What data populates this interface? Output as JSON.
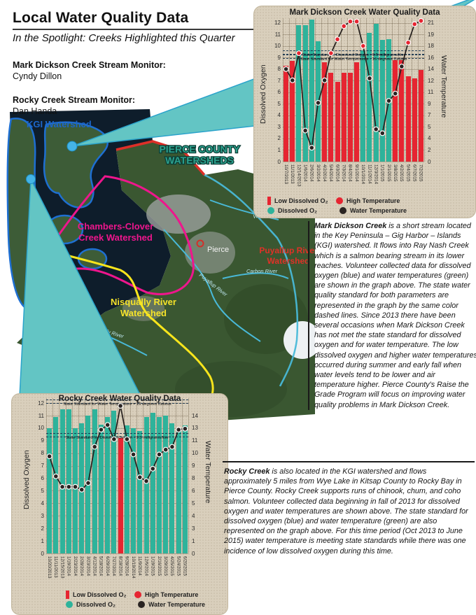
{
  "header": {
    "title": "Local Water Quality Data",
    "subtitle": "In the Spotlight: Creeks Highlighted this Quarter"
  },
  "monitors": [
    {
      "label": "Mark Dickson Creek Stream Monitor:",
      "name": "Cyndy Dillon"
    },
    {
      "label": "Rocky Creek Stream Monitor:",
      "name": "Dan Handa"
    }
  ],
  "map": {
    "labels": {
      "kgi": "KGI Watershed",
      "pierce_line1": "PIERCE COUNTY",
      "pierce_line2": "WATERSHEDS",
      "chambers_line1": "Chambers-Clover",
      "chambers_line2": "Creek Watershed",
      "nisqually_line1": "Nisqually River",
      "nisqually_line2": "Watershed",
      "puyallup_line1": "Puyallup River",
      "puyallup_line2": "Watershed",
      "river_white": "White River",
      "river_carbon": "Carbon River",
      "river_puyallup": "Puyallup River",
      "river_nisqually": "Nisqually River",
      "city": "Pierce"
    },
    "colors": {
      "kgi_outline": "#1e6fd2",
      "chambers_outline": "#ee168d",
      "nisqually_outline": "#f8e51c",
      "county_border": "#dd2f28",
      "river": "#49b9d8",
      "pierce_label": "#2ca08d"
    }
  },
  "legend": {
    "low_do": "Low Dissolved O₂",
    "high_temp": "High Temperature",
    "dissolved_o2": "Dissolved O₂",
    "water_temp": "Water Temperature"
  },
  "articles": {
    "mark_dickson": {
      "lead": "Mark Dickson Creek",
      "body": " is a short stream located in the Key Peninsula – Gig Harbor – Islands (KGI) watershed. It flows into Ray Nash Creek which is a salmon bearing stream in its lower reaches. Volunteer collected data for dissolved oxygen (blue) and water temperatures (green) are shown in the graph above. The state water quality standard for both parameters are represented in the graph by the same color dashed lines. Since 2013 there have been several occasions when Mark Dickson Creek has not met the state standard for dissolved oxygen and for water temperature. The low dissolved oxygen and higher water temperatures occurred during summer and early fall when water levels tend to be lower and air temperature higher. Pierce County's Raise the Grade Program will focus on improving water quality problems in Mark Dickson Creek."
    },
    "rocky": {
      "lead": "Rocky Creek",
      "body": " is also located in the KGI watershed and flows approximately 5 miles from Wye Lake in Kitsap County to Rocky Bay in Pierce County. Rocky Creek supports runs of chinook, chum, and coho salmon. Volunteer collected data beginning in fall of 2013 for dissolved oxygen and water temperatures are shown above. The state standard for dissolved oxygen (blue) and water temperature (green) are also represented on the graph above. For this time period (Oct 2013 to June 2015) water temperature is meeting state standards while there was one incidence of low dissolved oxygen during this time."
    }
  },
  "chart_colors": {
    "bar_ok": "#2eb39b",
    "bar_low": "#e62531",
    "dot_normal": "#2a2422",
    "dot_high": "#e62531",
    "line": "#26201e",
    "standard_dash": "#16334e",
    "card_bg": "#d9cfbc"
  },
  "chart_data": [
    {
      "id": "mark_dickson",
      "type": "bar",
      "subtype": "dual-axis bar + line",
      "title": "Mark Dickson Creek Water Quality Data",
      "ylabel_left": "Dissolved Oxygen",
      "ylabel_right": "Water Temperature",
      "categories": [
        "10/7/2013",
        "11/1/2013",
        "12/14/2013",
        "1/6/2014",
        "2/6/2014",
        "3/2/2014",
        "4/2/2014",
        "5/4/2014",
        "6/3/2014",
        "7/3/2014",
        "8/4/2014",
        "9/1/2014",
        "10/1/2014",
        "11/1/2014",
        "12/3/2014",
        "1/1/2015",
        "2/1/2015",
        "3/8/2015",
        "4/2/2015",
        "5/4/2015",
        "6/7/2015",
        "7/2/2015"
      ],
      "series": [
        {
          "name": "Dissolved O₂",
          "type": "bar",
          "axis": "left",
          "unit": "milligrams/liter",
          "values": [
            8.3,
            8.7,
            11.8,
            11.8,
            12.3,
            10.4,
            8.6,
            7.7,
            6.9,
            7.7,
            7.7,
            8.6,
            9.6,
            11.1,
            11.9,
            10.5,
            10.6,
            8.8,
            8.8,
            7.4,
            7.2,
            7.9
          ]
        },
        {
          "name": "Water Temperature",
          "type": "line",
          "axis": "right",
          "unit": "degrees Celsius",
          "values": [
            14,
            12.3,
            16.4,
            4.7,
            2.1,
            8.9,
            12.3,
            16.4,
            18.5,
            20.5,
            21.2,
            21.2,
            17.5,
            12.6,
            4.9,
            4.3,
            9.2,
            10.3,
            14.4,
            18,
            20.8,
            21.3
          ]
        }
      ],
      "standards": [
        {
          "label": "State Standard for Dissolved Oxygen - 9.5 milligrams/liter",
          "axis": "left",
          "value": 9.5
        },
        {
          "label": "State Standard for Water Temperature - 16 degrees Celsius",
          "axis": "right",
          "value": 16
        }
      ],
      "left_ticks": [
        0,
        1,
        2,
        3,
        4,
        5,
        6,
        7,
        8,
        9,
        10,
        11,
        12
      ],
      "right_tick_labels": [
        "21",
        "19",
        "18",
        "16",
        "14",
        "12",
        "11",
        "9",
        "7",
        "5",
        "4",
        "2",
        "0"
      ],
      "ylim_left": [
        0,
        12.4
      ],
      "ylim_right": [
        0,
        21.7
      ],
      "grid": true,
      "legend_position": "bottom-left"
    },
    {
      "id": "rocky",
      "type": "bar",
      "subtype": "dual-axis bar + line",
      "title": "Rocky Creek Water Quality Data",
      "ylabel_left": "Dissolved Oxygen",
      "ylabel_right": "Water Temperature",
      "categories": [
        "10/20/2013",
        "11/11/2013",
        "12/15/2013",
        "1/19/2014",
        "2/23/2014",
        "2/28/2014",
        "3/23/2014",
        "4/12/2014",
        "5/18/2014",
        "6/29/2014",
        "7/27/2014",
        "8/18/2014",
        "9/28/2014",
        "10/19/2014",
        "11/9/2014",
        "12/6/2014",
        "1/19/2015",
        "2/16/2015",
        "3/29/2015",
        "4/25/2015",
        "5/24/2015",
        "6/20/2015"
      ],
      "series": [
        {
          "name": "Dissolved O₂",
          "type": "bar",
          "axis": "left",
          "unit": "milligrams/liter",
          "values": [
            10.0,
            10.9,
            11.5,
            11.5,
            10.0,
            10.4,
            11.0,
            11.5,
            10.3,
            10.9,
            11.4,
            9.2,
            10.2,
            10.0,
            9.8,
            10.9,
            11.2,
            10.9,
            11.0,
            10.4,
            9.9,
            10.2
          ]
        },
        {
          "name": "Water Temperature",
          "type": "line",
          "axis": "right",
          "unit": "degrees Celsius",
          "values": [
            10.2,
            8.1,
            7.0,
            7.0,
            7.0,
            6.7,
            7.4,
            11.2,
            13.0,
            13.5,
            12.0,
            15.5,
            12.0,
            10.4,
            8.0,
            7.6,
            8.9,
            10.4,
            10.9,
            11.2,
            13.0,
            13.1
          ]
        }
      ],
      "standards": [
        {
          "label": "State Standard for Water Temperature = 16 degrees Celsius",
          "axis": "right",
          "value": 16
        },
        {
          "label": "State Standard for Dissolved Oxygen - 9.5 milligrams/liter",
          "axis": "left",
          "value": 9.5
        }
      ],
      "left_ticks": [
        0,
        1,
        2,
        3,
        4,
        5,
        6,
        7,
        8,
        9,
        10,
        11,
        12
      ],
      "right_tick_labels": [
        "",
        "14",
        "13",
        "11",
        "10",
        "9",
        "8",
        "6",
        "5",
        "4",
        "3",
        "1",
        "0"
      ],
      "ylim_left": [
        0,
        12.4
      ],
      "ylim_right": [
        0,
        16.3
      ],
      "grid": true,
      "legend_position": "bottom-left"
    }
  ]
}
